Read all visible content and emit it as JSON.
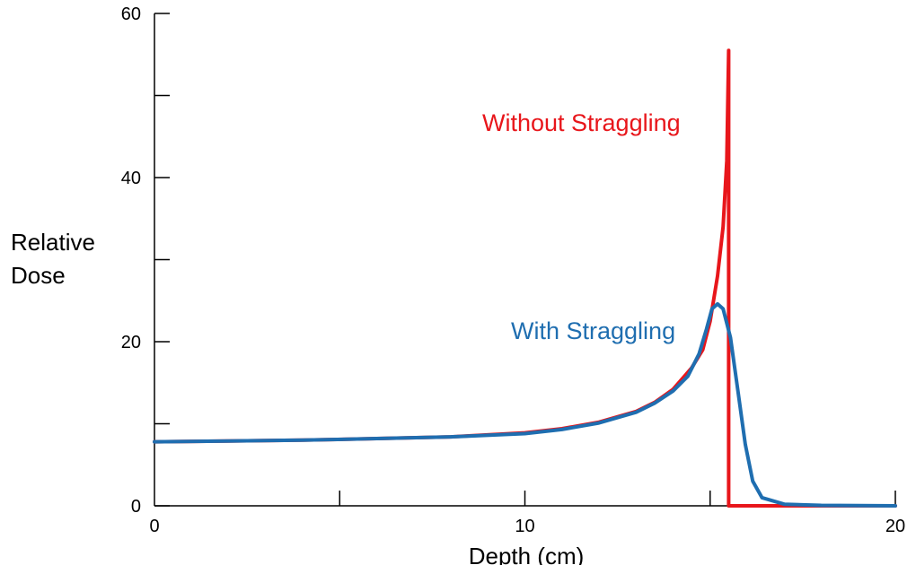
{
  "chart_data": {
    "type": "line",
    "title": "",
    "xlabel": "Depth (cm)",
    "ylabel": [
      "Relative",
      "Dose"
    ],
    "xlim": [
      0,
      20
    ],
    "ylim": [
      0,
      60
    ],
    "x_major_ticks": [
      0,
      10,
      20
    ],
    "x_minor_ticks": [
      5,
      15
    ],
    "y_major_ticks": [
      0,
      20,
      40,
      60
    ],
    "y_minor_ticks": [
      10,
      30,
      50
    ],
    "grid": false,
    "legend": "none",
    "series": [
      {
        "name": "Without Straggling",
        "color": "#e8161b",
        "x": [
          0,
          2,
          4,
          6,
          8,
          10,
          11,
          12,
          13,
          13.5,
          14,
          14.5,
          14.8,
          15.0,
          15.2,
          15.35,
          15.45,
          15.5,
          15.5,
          15.5,
          15.8,
          20
        ],
        "y": [
          7.8,
          7.9,
          8.0,
          8.2,
          8.4,
          8.9,
          9.4,
          10.2,
          11.5,
          12.6,
          14.2,
          16.8,
          19.0,
          22.5,
          28.0,
          34.0,
          42.0,
          55.5,
          0,
          0,
          0,
          0
        ]
      },
      {
        "name": "With Straggling",
        "color": "#1f6eb0",
        "x": [
          0,
          2,
          4,
          6,
          8,
          10,
          11,
          12,
          13,
          13.5,
          14,
          14.4,
          14.7,
          14.9,
          15.05,
          15.2,
          15.35,
          15.55,
          15.75,
          15.95,
          16.15,
          16.4,
          17,
          18,
          20
        ],
        "y": [
          7.8,
          7.9,
          8.0,
          8.2,
          8.4,
          8.8,
          9.3,
          10.1,
          11.4,
          12.5,
          14.0,
          15.8,
          18.5,
          21.5,
          24.0,
          24.6,
          24.0,
          20.5,
          14.0,
          7.5,
          3.0,
          1.0,
          0.2,
          0.05,
          0
        ]
      }
    ],
    "annotations": [
      {
        "text": "Without Straggling",
        "series": 0
      },
      {
        "text": "With Straggling",
        "series": 1
      }
    ]
  }
}
